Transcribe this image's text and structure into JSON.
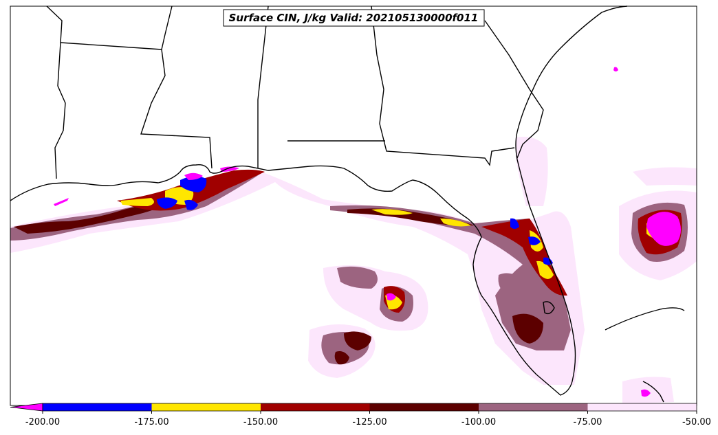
{
  "title": "Surface CIN, J/kg Valid: 202105130000f011",
  "colorbar": {
    "bins": [
      {
        "from": -200,
        "to": -175,
        "color": "#0000ff"
      },
      {
        "from": -175,
        "to": -150,
        "color": "#ffe600"
      },
      {
        "from": -150,
        "to": -125,
        "color": "#a00000"
      },
      {
        "from": -125,
        "to": -100,
        "color": "#5c0000"
      },
      {
        "from": -100,
        "to": -75,
        "color": "#9c6480"
      },
      {
        "from": -75,
        "to": -50,
        "color": "#fce6fc"
      }
    ],
    "under_color": "#ff00ff",
    "ticks": [
      "-200.00",
      "-175.00",
      "-150.00",
      "-125.00",
      "-100.00",
      "-75.00",
      "-50.00"
    ]
  },
  "colors": {
    "magenta": "#ff00ff",
    "blue": "#0000ff",
    "yellow": "#ffe600",
    "red": "#a00000",
    "darkred": "#5c0000",
    "mauve": "#9c6480",
    "pink": "#fce6fc"
  }
}
